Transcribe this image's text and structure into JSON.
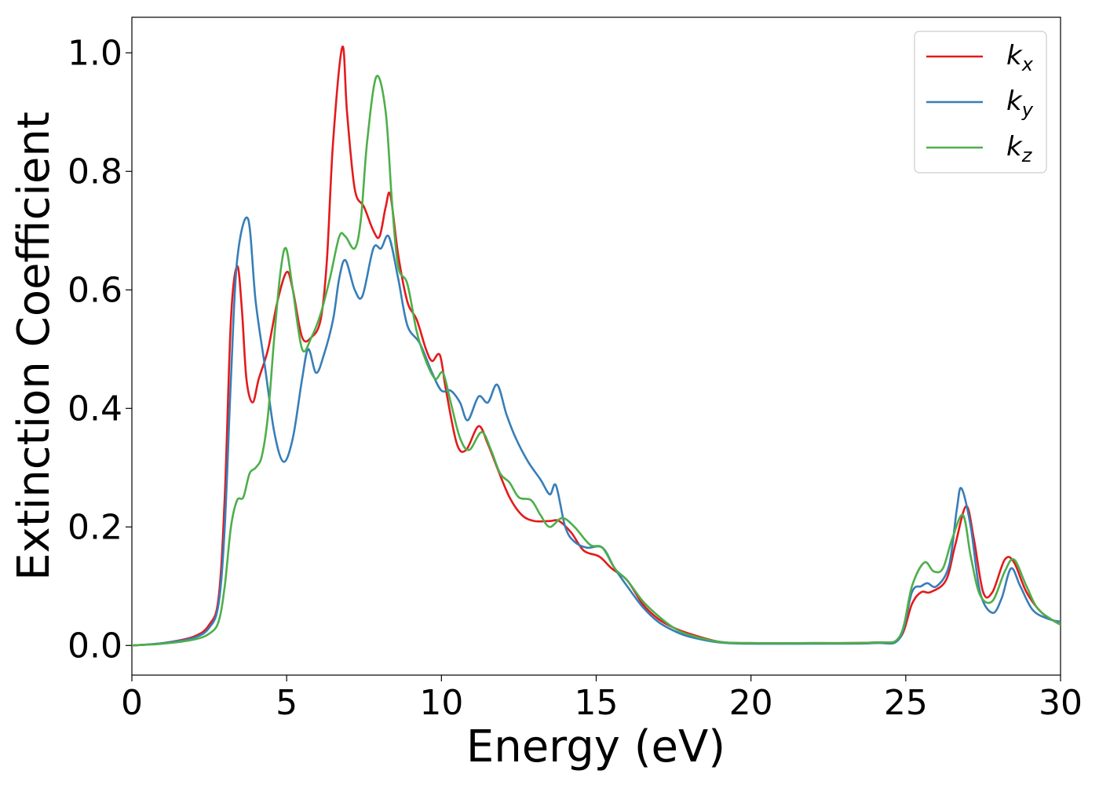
{
  "chart_data": {
    "type": "line",
    "title": "",
    "xlabel": "Energy (eV)",
    "ylabel": "Extinction Coefficient",
    "xlim": [
      0,
      30
    ],
    "ylim": [
      -0.05,
      1.06
    ],
    "xticks": [
      0,
      5,
      10,
      15,
      20,
      25,
      30
    ],
    "xtick_labels": [
      "0",
      "5",
      "10",
      "15",
      "20",
      "25",
      "30"
    ],
    "yticks": [
      0.0,
      0.2,
      0.4,
      0.6,
      0.8,
      1.0
    ],
    "ytick_labels": [
      "0.0",
      "0.2",
      "0.4",
      "0.6",
      "0.8",
      "1.0"
    ],
    "grid": false,
    "legend_position": "top-right",
    "series": [
      {
        "name": "k_x",
        "legend_base": "k",
        "legend_sub": "x",
        "color": "#e41a1c",
        "points": [
          [
            0,
            0
          ],
          [
            1,
            0.004
          ],
          [
            2,
            0.015
          ],
          [
            2.5,
            0.035
          ],
          [
            2.8,
            0.08
          ],
          [
            3.0,
            0.25
          ],
          [
            3.2,
            0.55
          ],
          [
            3.4,
            0.64
          ],
          [
            3.55,
            0.57
          ],
          [
            3.7,
            0.45
          ],
          [
            3.9,
            0.41
          ],
          [
            4.1,
            0.45
          ],
          [
            4.4,
            0.5
          ],
          [
            4.7,
            0.58
          ],
          [
            5.0,
            0.63
          ],
          [
            5.2,
            0.6
          ],
          [
            5.5,
            0.52
          ],
          [
            5.8,
            0.52
          ],
          [
            6.1,
            0.55
          ],
          [
            6.3,
            0.65
          ],
          [
            6.5,
            0.85
          ],
          [
            6.8,
            1.01
          ],
          [
            6.95,
            0.9
          ],
          [
            7.2,
            0.77
          ],
          [
            7.5,
            0.74
          ],
          [
            7.8,
            0.7
          ],
          [
            8.0,
            0.69
          ],
          [
            8.2,
            0.74
          ],
          [
            8.35,
            0.76
          ],
          [
            8.6,
            0.66
          ],
          [
            8.9,
            0.58
          ],
          [
            9.2,
            0.55
          ],
          [
            9.5,
            0.5
          ],
          [
            9.7,
            0.48
          ],
          [
            9.95,
            0.49
          ],
          [
            10.15,
            0.43
          ],
          [
            10.5,
            0.34
          ],
          [
            10.8,
            0.33
          ],
          [
            11.2,
            0.37
          ],
          [
            11.5,
            0.34
          ],
          [
            11.8,
            0.3
          ],
          [
            12.2,
            0.25
          ],
          [
            12.6,
            0.22
          ],
          [
            13.0,
            0.21
          ],
          [
            13.5,
            0.21
          ],
          [
            13.8,
            0.21
          ],
          [
            14.2,
            0.19
          ],
          [
            14.6,
            0.16
          ],
          [
            15.1,
            0.15
          ],
          [
            15.5,
            0.13
          ],
          [
            16.0,
            0.11
          ],
          [
            16.5,
            0.07
          ],
          [
            17.0,
            0.045
          ],
          [
            17.5,
            0.03
          ],
          [
            18.0,
            0.02
          ],
          [
            19.0,
            0.006
          ],
          [
            20,
            0.004
          ],
          [
            22,
            0.004
          ],
          [
            24,
            0.005
          ],
          [
            24.8,
            0.012
          ],
          [
            25.2,
            0.07
          ],
          [
            25.5,
            0.09
          ],
          [
            25.8,
            0.09
          ],
          [
            26.3,
            0.11
          ],
          [
            26.6,
            0.17
          ],
          [
            26.95,
            0.235
          ],
          [
            27.2,
            0.18
          ],
          [
            27.5,
            0.09
          ],
          [
            27.8,
            0.09
          ],
          [
            28.2,
            0.145
          ],
          [
            28.5,
            0.14
          ],
          [
            28.9,
            0.09
          ],
          [
            29.4,
            0.055
          ],
          [
            30,
            0.035
          ]
        ]
      },
      {
        "name": "k_y",
        "legend_base": "k",
        "legend_sub": "y",
        "color": "#377eb8",
        "points": [
          [
            0,
            0
          ],
          [
            1,
            0.004
          ],
          [
            2,
            0.013
          ],
          [
            2.5,
            0.03
          ],
          [
            2.8,
            0.07
          ],
          [
            3.0,
            0.2
          ],
          [
            3.2,
            0.45
          ],
          [
            3.4,
            0.65
          ],
          [
            3.75,
            0.72
          ],
          [
            4.0,
            0.58
          ],
          [
            4.3,
            0.47
          ],
          [
            4.6,
            0.36
          ],
          [
            4.9,
            0.31
          ],
          [
            5.2,
            0.35
          ],
          [
            5.5,
            0.45
          ],
          [
            5.7,
            0.5
          ],
          [
            5.95,
            0.46
          ],
          [
            6.2,
            0.49
          ],
          [
            6.5,
            0.55
          ],
          [
            6.7,
            0.62
          ],
          [
            6.9,
            0.65
          ],
          [
            7.2,
            0.6
          ],
          [
            7.45,
            0.59
          ],
          [
            7.8,
            0.67
          ],
          [
            8.05,
            0.67
          ],
          [
            8.3,
            0.69
          ],
          [
            8.6,
            0.62
          ],
          [
            8.9,
            0.54
          ],
          [
            9.3,
            0.51
          ],
          [
            9.7,
            0.46
          ],
          [
            10.0,
            0.43
          ],
          [
            10.3,
            0.43
          ],
          [
            10.6,
            0.41
          ],
          [
            10.85,
            0.38
          ],
          [
            11.2,
            0.42
          ],
          [
            11.5,
            0.41
          ],
          [
            11.8,
            0.44
          ],
          [
            12.1,
            0.39
          ],
          [
            12.4,
            0.35
          ],
          [
            12.8,
            0.31
          ],
          [
            13.2,
            0.28
          ],
          [
            13.5,
            0.255
          ],
          [
            13.7,
            0.27
          ],
          [
            14.0,
            0.2
          ],
          [
            14.3,
            0.175
          ],
          [
            14.7,
            0.165
          ],
          [
            15.2,
            0.165
          ],
          [
            15.6,
            0.13
          ],
          [
            16.0,
            0.1
          ],
          [
            16.5,
            0.065
          ],
          [
            17.0,
            0.04
          ],
          [
            17.5,
            0.025
          ],
          [
            18.0,
            0.015
          ],
          [
            19.0,
            0.005
          ],
          [
            20,
            0.003
          ],
          [
            22,
            0.003
          ],
          [
            24,
            0.004
          ],
          [
            24.8,
            0.012
          ],
          [
            25.2,
            0.09
          ],
          [
            25.5,
            0.1
          ],
          [
            25.7,
            0.105
          ],
          [
            26.0,
            0.1
          ],
          [
            26.4,
            0.135
          ],
          [
            26.65,
            0.23
          ],
          [
            26.8,
            0.265
          ],
          [
            27.1,
            0.2
          ],
          [
            27.4,
            0.09
          ],
          [
            27.8,
            0.055
          ],
          [
            28.1,
            0.08
          ],
          [
            28.4,
            0.13
          ],
          [
            28.7,
            0.1
          ],
          [
            29.1,
            0.06
          ],
          [
            29.6,
            0.045
          ],
          [
            30,
            0.04
          ]
        ]
      },
      {
        "name": "k_z",
        "legend_base": "k",
        "legend_sub": "z",
        "color": "#4daf4a",
        "points": [
          [
            0,
            0
          ],
          [
            1,
            0.003
          ],
          [
            2,
            0.01
          ],
          [
            2.5,
            0.02
          ],
          [
            2.8,
            0.04
          ],
          [
            3.0,
            0.1
          ],
          [
            3.2,
            0.2
          ],
          [
            3.4,
            0.245
          ],
          [
            3.6,
            0.25
          ],
          [
            3.8,
            0.29
          ],
          [
            4.0,
            0.3
          ],
          [
            4.2,
            0.32
          ],
          [
            4.4,
            0.39
          ],
          [
            4.6,
            0.52
          ],
          [
            4.8,
            0.63
          ],
          [
            4.98,
            0.67
          ],
          [
            5.2,
            0.6
          ],
          [
            5.5,
            0.5
          ],
          [
            5.8,
            0.52
          ],
          [
            6.1,
            0.56
          ],
          [
            6.4,
            0.62
          ],
          [
            6.7,
            0.69
          ],
          [
            6.9,
            0.69
          ],
          [
            7.2,
            0.67
          ],
          [
            7.4,
            0.72
          ],
          [
            7.6,
            0.85
          ],
          [
            7.9,
            0.96
          ],
          [
            8.2,
            0.9
          ],
          [
            8.4,
            0.75
          ],
          [
            8.6,
            0.64
          ],
          [
            8.9,
            0.61
          ],
          [
            9.2,
            0.53
          ],
          [
            9.5,
            0.48
          ],
          [
            9.8,
            0.45
          ],
          [
            10.05,
            0.46
          ],
          [
            10.3,
            0.41
          ],
          [
            10.6,
            0.35
          ],
          [
            10.9,
            0.33
          ],
          [
            11.3,
            0.36
          ],
          [
            11.6,
            0.33
          ],
          [
            11.9,
            0.29
          ],
          [
            12.2,
            0.275
          ],
          [
            12.5,
            0.25
          ],
          [
            12.9,
            0.245
          ],
          [
            13.2,
            0.22
          ],
          [
            13.5,
            0.2
          ],
          [
            13.9,
            0.215
          ],
          [
            14.3,
            0.2
          ],
          [
            14.8,
            0.17
          ],
          [
            15.2,
            0.165
          ],
          [
            15.6,
            0.13
          ],
          [
            16.0,
            0.11
          ],
          [
            16.5,
            0.075
          ],
          [
            17.0,
            0.05
          ],
          [
            17.5,
            0.03
          ],
          [
            18.0,
            0.018
          ],
          [
            19.0,
            0.006
          ],
          [
            20,
            0.004
          ],
          [
            22,
            0.004
          ],
          [
            24,
            0.005
          ],
          [
            24.8,
            0.015
          ],
          [
            25.2,
            0.1
          ],
          [
            25.6,
            0.14
          ],
          [
            25.9,
            0.125
          ],
          [
            26.2,
            0.13
          ],
          [
            26.5,
            0.18
          ],
          [
            26.85,
            0.22
          ],
          [
            27.1,
            0.15
          ],
          [
            27.4,
            0.085
          ],
          [
            27.8,
            0.075
          ],
          [
            28.2,
            0.125
          ],
          [
            28.5,
            0.145
          ],
          [
            28.9,
            0.1
          ],
          [
            29.3,
            0.06
          ],
          [
            30,
            0.035
          ]
        ]
      }
    ]
  }
}
